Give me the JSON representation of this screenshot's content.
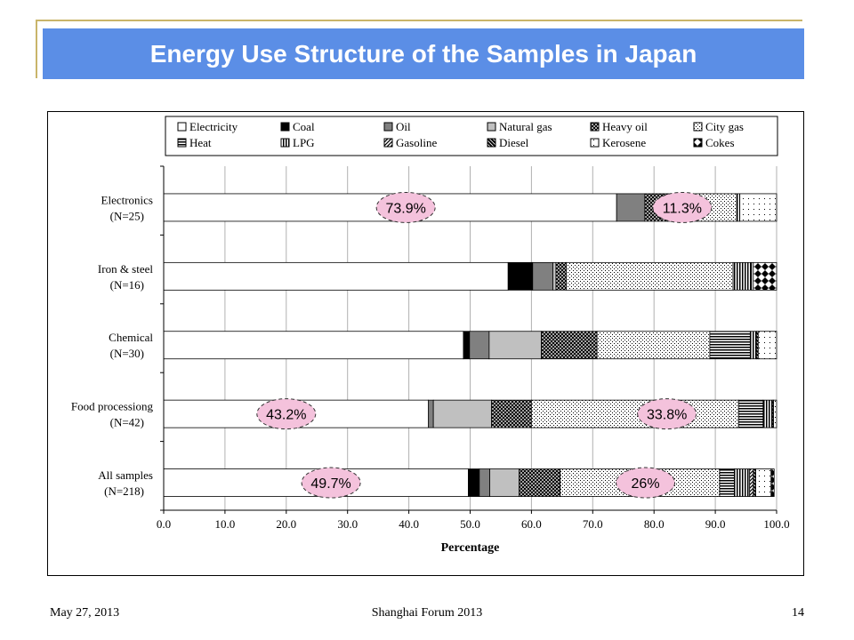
{
  "slide": {
    "title": "Energy Use Structure of the Samples in Japan",
    "footer_date": "May 27, 2013",
    "footer_event": "Shanghai Forum 2013",
    "page_number": "14"
  },
  "chart_data": {
    "type": "bar",
    "orientation": "horizontal",
    "stacked": true,
    "title": "",
    "xlabel": "Percentage",
    "ylabel": "",
    "xlim": [
      0,
      100
    ],
    "x_ticks": [
      "0.0",
      "10.0",
      "20.0",
      "30.0",
      "40.0",
      "50.0",
      "60.0",
      "70.0",
      "80.0",
      "90.0",
      "100.0"
    ],
    "grid": "vertical",
    "legend_position": "top",
    "categories": [
      {
        "line1": "Electronics",
        "line2": "(N=25)"
      },
      {
        "line1": "Iron & steel",
        "line2": "(N=16)"
      },
      {
        "line1": "Chemical",
        "line2": "(N=30)"
      },
      {
        "line1": "Food processiong",
        "line2": "(N=42)"
      },
      {
        "line1": "All samples",
        "line2": "(N=218)"
      }
    ],
    "series": [
      {
        "name": "Electricity",
        "pattern": "white",
        "values": [
          73.9,
          56.2,
          48.9,
          43.2,
          49.7
        ]
      },
      {
        "name": "Coal",
        "pattern": "black",
        "values": [
          0.0,
          4.0,
          1.0,
          0.0,
          1.8
        ]
      },
      {
        "name": "Oil",
        "pattern": "gray",
        "values": [
          4.6,
          3.3,
          3.2,
          0.8,
          1.7
        ]
      },
      {
        "name": "Natural gas",
        "pattern": "lightgray",
        "values": [
          0.0,
          0.5,
          8.5,
          9.5,
          4.8
        ]
      },
      {
        "name": "Heavy oil",
        "pattern": "crosshatch",
        "values": [
          3.7,
          1.7,
          9.1,
          6.5,
          6.7
        ]
      },
      {
        "name": "City gas",
        "pattern": "dots",
        "values": [
          11.3,
          27.2,
          18.4,
          33.8,
          26.0
        ]
      },
      {
        "name": "Heat",
        "pattern": "hlines",
        "values": [
          0.0,
          0.0,
          6.6,
          4.0,
          2.4
        ]
      },
      {
        "name": "LPG",
        "pattern": "vlines",
        "values": [
          0.5,
          3.0,
          1.0,
          1.5,
          2.5
        ]
      },
      {
        "name": "Gasoline",
        "pattern": "diag",
        "values": [
          0.0,
          0.0,
          0.0,
          0.0,
          0.6
        ]
      },
      {
        "name": "Diesel",
        "pattern": "diagbold",
        "values": [
          0.0,
          0.0,
          0.3,
          0.2,
          0.4
        ]
      },
      {
        "name": "Kerosene",
        "pattern": "sparse",
        "values": [
          6.0,
          0.3,
          3.0,
          0.5,
          2.5
        ]
      },
      {
        "name": "Cokes",
        "pattern": "checker",
        "values": [
          0.0,
          3.8,
          0.0,
          0.0,
          0.5
        ]
      }
    ],
    "callouts": [
      {
        "text": "73.9%",
        "category": 0,
        "x": 39.5
      },
      {
        "text": "11.3%",
        "category": 0,
        "x": 84.6
      },
      {
        "text": "43.2%",
        "category": 3,
        "x": 20.0
      },
      {
        "text": "33.8%",
        "category": 3,
        "x": 82.1
      },
      {
        "text": "49.7%",
        "category": 4,
        "x": 27.3
      },
      {
        "text": "26%",
        "category": 4,
        "x": 78.6
      }
    ],
    "callout_color": "#f4c2dc"
  }
}
